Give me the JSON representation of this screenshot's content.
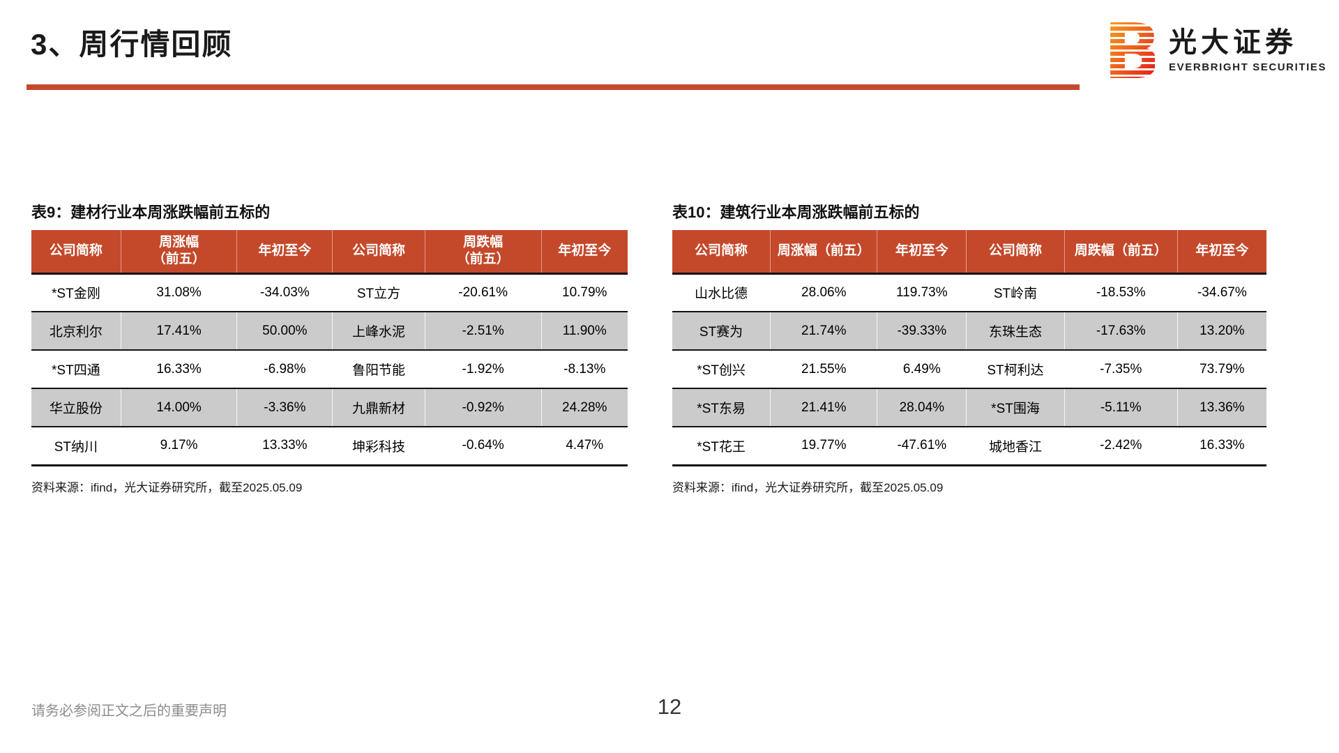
{
  "page": {
    "title": "3、周行情回顾",
    "footer_disclaimer": "请务必参阅正文之后的重要声明",
    "page_number": "12"
  },
  "logo": {
    "mark_letter": "B",
    "name_cn": "光大证券",
    "name_en": "EVERBRIGHT SECURITIES"
  },
  "colors": {
    "accent": "#C4492B",
    "row_alt": "#CBCBCB",
    "footer_grey": "#8C8C8C"
  },
  "tables": [
    {
      "title": "表9：建材行业本周涨跌幅前五标的",
      "headers": [
        "公司简称",
        "周涨幅\n（前五）",
        "年初至今",
        "公司简称",
        "周跌幅\n（前五）",
        "年初至今"
      ],
      "rows": [
        [
          "*ST金刚",
          "31.08%",
          "-34.03%",
          "ST立方",
          "-20.61%",
          "10.79%"
        ],
        [
          "北京利尔",
          "17.41%",
          "50.00%",
          "上峰水泥",
          "-2.51%",
          "11.90%"
        ],
        [
          "*ST四通",
          "16.33%",
          "-6.98%",
          "鲁阳节能",
          "-1.92%",
          "-8.13%"
        ],
        [
          "华立股份",
          "14.00%",
          "-3.36%",
          "九鼎新材",
          "-0.92%",
          "24.28%"
        ],
        [
          "ST纳川",
          "9.17%",
          "13.33%",
          "坤彩科技",
          "-0.64%",
          "4.47%"
        ]
      ],
      "source": "资料来源：ifind，光大证券研究所，截至2025.05.09"
    },
    {
      "title": "表10：建筑行业本周涨跌幅前五标的",
      "headers": [
        "公司简称",
        "周涨幅（前五）",
        "年初至今",
        "公司简称",
        "周跌幅（前五）",
        "年初至今"
      ],
      "rows": [
        [
          "山水比德",
          "28.06%",
          "119.73%",
          "ST岭南",
          "-18.53%",
          "-34.67%"
        ],
        [
          "ST赛为",
          "21.74%",
          "-39.33%",
          "东珠生态",
          "-17.63%",
          "13.20%"
        ],
        [
          "*ST创兴",
          "21.55%",
          "6.49%",
          "ST柯利达",
          "-7.35%",
          "73.79%"
        ],
        [
          "*ST东易",
          "21.41%",
          "28.04%",
          "*ST围海",
          "-5.11%",
          "13.36%"
        ],
        [
          "*ST花王",
          "19.77%",
          "-47.61%",
          "城地香江",
          "-2.42%",
          "16.33%"
        ]
      ],
      "source": "资料来源：ifind，光大证券研究所，截至2025.05.09"
    }
  ]
}
